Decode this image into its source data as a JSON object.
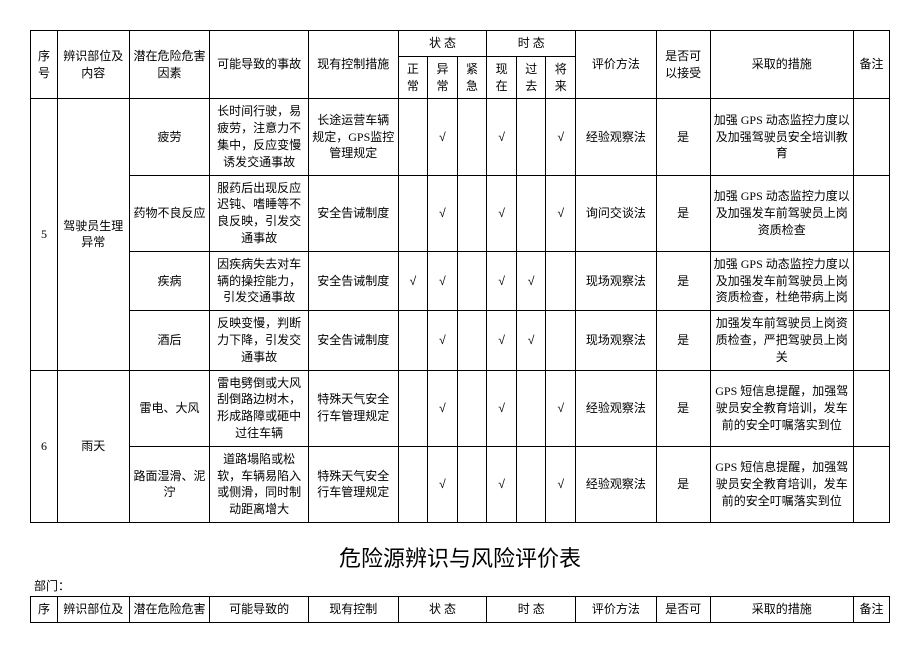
{
  "header": {
    "seq": "序号",
    "part": "辨识部位及内容",
    "factor": "潜在危险危害因素",
    "accident": "可能导致的事故",
    "control": "现有控制措施",
    "state": "状  态",
    "time": "时  态",
    "state_sub": [
      "正常",
      "异常",
      "紧急"
    ],
    "time_sub": [
      "现在",
      "过去",
      "将来"
    ],
    "eval": "评价方法",
    "accept": "是否可以接受",
    "measure": "采取的措施",
    "remark": "备注"
  },
  "check": "√",
  "groups": [
    {
      "seq": "5",
      "part": "驾驶员生理异常",
      "rows": [
        {
          "factor": "疲劳",
          "accident": "长时间行驶，易疲劳，注意力不集中，反应变慢诱发交通事故",
          "control": "长途运营车辆规定，GPS监控管理规定",
          "s": [
            false,
            true,
            false
          ],
          "t": [
            true,
            false,
            true
          ],
          "eval": "经验观察法",
          "accept": "是",
          "measure": "加强 GPS 动态监控力度以及加强驾驶员安全培训教育",
          "remark": ""
        },
        {
          "factor": "药物不良反应",
          "accident": "服药后出现反应迟钝、嗜睡等不良反映，引发交通事故",
          "control": "安全告诫制度",
          "s": [
            false,
            true,
            false
          ],
          "t": [
            true,
            false,
            true
          ],
          "eval": "询问交谈法",
          "accept": "是",
          "measure": "加强 GPS 动态监控力度以及加强发车前驾驶员上岗资质检查",
          "remark": ""
        },
        {
          "factor": "疾病",
          "accident": "因疾病失去对车辆的操控能力，引发交通事故",
          "control": "安全告诫制度",
          "s": [
            true,
            true,
            false
          ],
          "t": [
            true,
            true,
            false
          ],
          "eval": "现场观察法",
          "accept": "是",
          "measure": "加强 GPS 动态监控力度以及加强发车前驾驶员上岗资质检查，杜绝带病上岗",
          "remark": ""
        },
        {
          "factor": "酒后",
          "accident": "反映变慢，判断力下降，引发交通事故",
          "control": "安全告诫制度",
          "s": [
            false,
            true,
            false
          ],
          "t": [
            true,
            true,
            false
          ],
          "eval": "现场观察法",
          "accept": "是",
          "measure": "加强发车前驾驶员上岗资质检查，严把驾驶员上岗关",
          "remark": ""
        }
      ]
    },
    {
      "seq": "6",
      "part": "雨天",
      "rows": [
        {
          "factor": "雷电、大风",
          "accident": "雷电劈倒或大风刮倒路边树木，形成路障或砸中过往车辆",
          "control": "特殊天气安全行车管理规定",
          "s": [
            false,
            true,
            false
          ],
          "t": [
            true,
            false,
            true
          ],
          "eval": "经验观察法",
          "accept": "是",
          "measure": "GPS 短信息提醒，加强驾驶员安全教育培训，发车前的安全叮嘱落实到位",
          "remark": ""
        },
        {
          "factor": "路面湿滑、泥泞",
          "accident": "道路塌陷或松软，车辆易陷入或侧滑，同时制动距离增大",
          "control": "特殊天气安全行车管理规定",
          "s": [
            false,
            true,
            false
          ],
          "t": [
            true,
            false,
            true
          ],
          "eval": "经验观察法",
          "accept": "是",
          "measure": "GPS 短信息提醒，加强驾驶员安全教育培训，发车前的安全叮嘱落实到位",
          "remark": ""
        }
      ]
    }
  ],
  "title2": "危险源辨识与风险评价表",
  "dept_label": "部门：",
  "header2": {
    "seq": "序",
    "part": "辨识部位及",
    "factor": "潜在危险危害",
    "accident": "可能导致的",
    "control": "现有控制",
    "state": "状  态",
    "time": "时  态",
    "eval": "评价方法",
    "accept": "是否可",
    "measure": "采取的措施",
    "remark": "备注"
  },
  "col_widths": [
    "3%",
    "8%",
    "9%",
    "11%",
    "10%",
    "3.3%",
    "3.3%",
    "3.3%",
    "3.3%",
    "3.3%",
    "3.3%",
    "9%",
    "6%",
    "16%",
    "4%"
  ]
}
